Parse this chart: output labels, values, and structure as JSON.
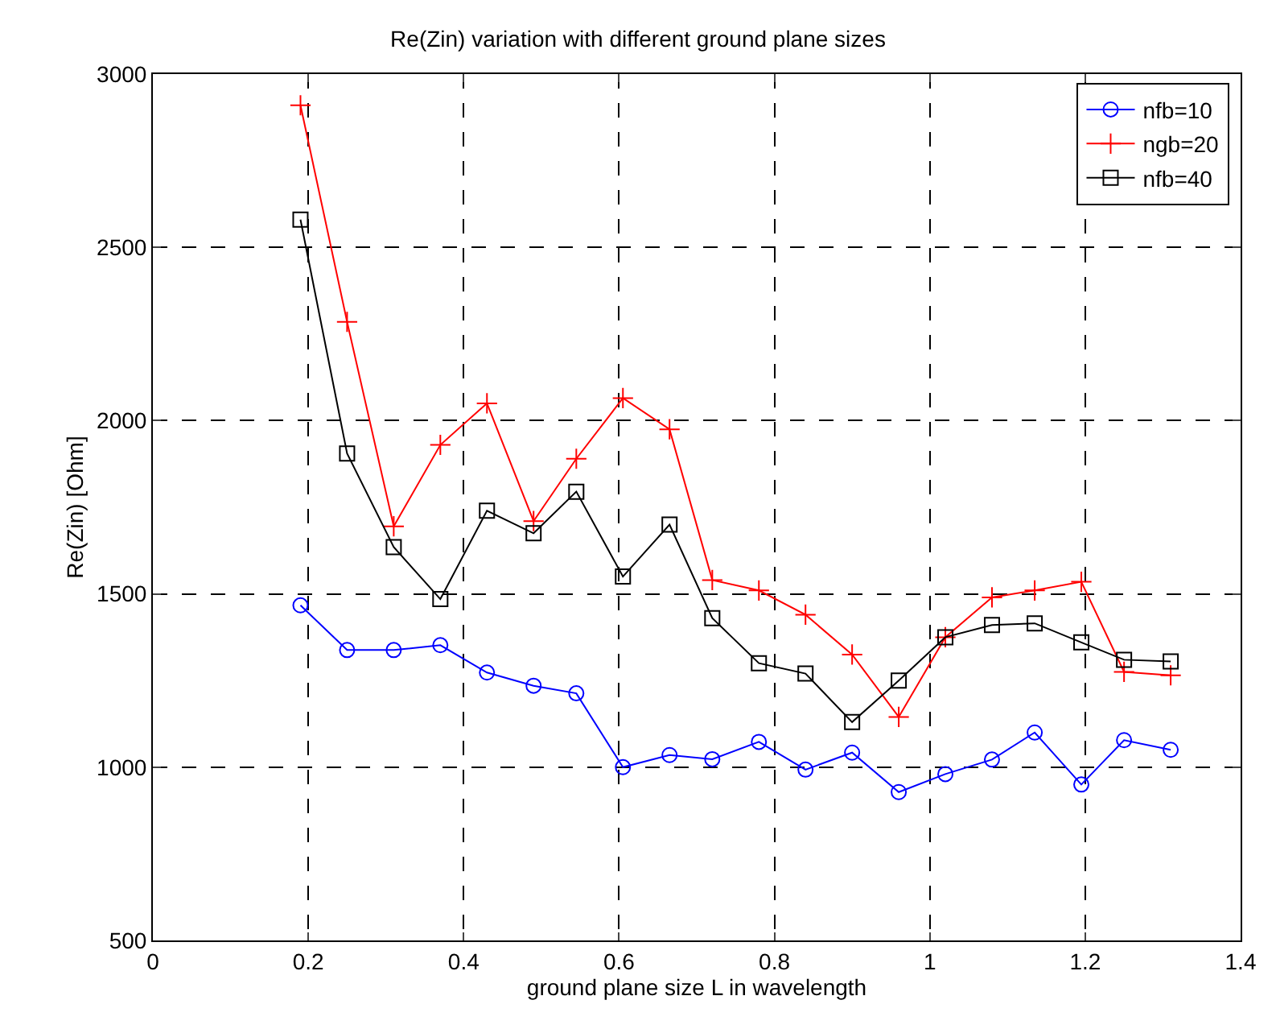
{
  "chart_data": {
    "type": "line",
    "title": "Re(Zin) variation with different ground plane sizes",
    "xlabel": "ground plane size L in wavelength",
    "ylabel": "Re(Zin) [Ohm]",
    "x": [
      0.19,
      0.25,
      0.31,
      0.37,
      0.43,
      0.49,
      0.545,
      0.605,
      0.665,
      0.72,
      0.78,
      0.84,
      0.9,
      0.96,
      1.02,
      1.08,
      1.135,
      1.195,
      1.25,
      1.31
    ],
    "series": [
      {
        "name": "nfb=10",
        "color": "#0000ff",
        "marker": "circle",
        "values": [
          1467,
          1338,
          1338,
          1352,
          1273,
          1235,
          1213,
          1000,
          1035,
          1023,
          1073,
          993,
          1042,
          928,
          980,
          1022,
          1100,
          950,
          1078,
          1050
        ]
      },
      {
        "name": "ngb=20",
        "color": "#ff0000",
        "marker": "cross",
        "values": [
          2910,
          2285,
          1695,
          1930,
          2050,
          1710,
          1890,
          2065,
          1975,
          1540,
          1510,
          1440,
          1325,
          1145,
          1375,
          1490,
          1510,
          1535,
          1275,
          1265
        ]
      },
      {
        "name": "nfb=40",
        "color": "#000000",
        "marker": "square",
        "values": [
          2580,
          1905,
          1635,
          1485,
          1740,
          1675,
          1795,
          1550,
          1700,
          1430,
          1300,
          1270,
          1130,
          1250,
          1375,
          1410,
          1415,
          1360,
          1310,
          1305
        ]
      }
    ],
    "xlim": [
      0,
      1.4
    ],
    "xticks": [
      0,
      0.2,
      0.4,
      0.6,
      0.8,
      1,
      1.2,
      1.4
    ],
    "ylim": [
      500,
      3000
    ],
    "yticks": [
      500,
      1000,
      1500,
      2000,
      2500,
      3000
    ],
    "grid": true,
    "legend": "top right",
    "line_style": "solid"
  }
}
